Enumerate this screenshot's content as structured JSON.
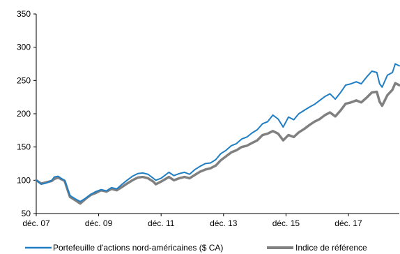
{
  "chart_data": {
    "type": "line",
    "title": "",
    "xlabel": "",
    "ylabel": "",
    "ylim": [
      50,
      350
    ],
    "yticks": [
      50,
      100,
      150,
      200,
      250,
      300,
      350
    ],
    "xlim": [
      2007.92,
      2019.55
    ],
    "xticks": [
      {
        "x": 2007.92,
        "label": "déc. 07"
      },
      {
        "x": 2009.92,
        "label": "déc. 09"
      },
      {
        "x": 2011.92,
        "label": "déc. 11"
      },
      {
        "x": 2013.92,
        "label": "déc. 13"
      },
      {
        "x": 2015.92,
        "label": "déc. 15"
      },
      {
        "x": 2017.92,
        "label": "déc. 17"
      }
    ],
    "grid": false,
    "legend_position": "bottom",
    "series": [
      {
        "name": "Portefeuille d'actions nord-américaines ($ CA)",
        "color": "#1f7ec4",
        "points": [
          [
            2007.92,
            100
          ],
          [
            2008.08,
            94
          ],
          [
            2008.25,
            96
          ],
          [
            2008.42,
            100
          ],
          [
            2008.5,
            105
          ],
          [
            2008.62,
            106
          ],
          [
            2008.75,
            102
          ],
          [
            2008.83,
            100
          ],
          [
            2009.0,
            77
          ],
          [
            2009.17,
            72
          ],
          [
            2009.33,
            68
          ],
          [
            2009.5,
            73
          ],
          [
            2009.67,
            79
          ],
          [
            2009.83,
            83
          ],
          [
            2010.0,
            86
          ],
          [
            2010.17,
            84
          ],
          [
            2010.33,
            89
          ],
          [
            2010.5,
            87
          ],
          [
            2010.67,
            94
          ],
          [
            2010.83,
            100
          ],
          [
            2011.0,
            106
          ],
          [
            2011.17,
            110
          ],
          [
            2011.33,
            111
          ],
          [
            2011.5,
            109
          ],
          [
            2011.67,
            103
          ],
          [
            2011.75,
            100
          ],
          [
            2011.92,
            103
          ],
          [
            2012.17,
            112
          ],
          [
            2012.33,
            107
          ],
          [
            2012.5,
            110
          ],
          [
            2012.67,
            112
          ],
          [
            2012.83,
            109
          ],
          [
            2013.0,
            116
          ],
          [
            2013.17,
            121
          ],
          [
            2013.33,
            125
          ],
          [
            2013.5,
            126
          ],
          [
            2013.67,
            131
          ],
          [
            2013.83,
            140
          ],
          [
            2014.0,
            145
          ],
          [
            2014.17,
            152
          ],
          [
            2014.33,
            155
          ],
          [
            2014.5,
            162
          ],
          [
            2014.67,
            165
          ],
          [
            2014.83,
            171
          ],
          [
            2015.0,
            176
          ],
          [
            2015.17,
            185
          ],
          [
            2015.33,
            188
          ],
          [
            2015.5,
            198
          ],
          [
            2015.67,
            192
          ],
          [
            2015.83,
            180
          ],
          [
            2016.0,
            195
          ],
          [
            2016.17,
            191
          ],
          [
            2016.33,
            200
          ],
          [
            2016.5,
            205
          ],
          [
            2016.67,
            210
          ],
          [
            2016.83,
            214
          ],
          [
            2017.0,
            220
          ],
          [
            2017.17,
            226
          ],
          [
            2017.33,
            230
          ],
          [
            2017.5,
            222
          ],
          [
            2017.67,
            232
          ],
          [
            2017.83,
            243
          ],
          [
            2018.0,
            245
          ],
          [
            2018.17,
            248
          ],
          [
            2018.33,
            245
          ],
          [
            2018.5,
            255
          ],
          [
            2018.67,
            264
          ],
          [
            2018.83,
            262
          ],
          [
            2018.92,
            245
          ],
          [
            2019.0,
            240
          ],
          [
            2019.17,
            258
          ],
          [
            2019.33,
            262
          ],
          [
            2019.42,
            275
          ],
          [
            2019.55,
            272
          ]
        ]
      },
      {
        "name": "Indice de référence",
        "color": "#808080",
        "points": [
          [
            2007.92,
            100
          ],
          [
            2008.08,
            95
          ],
          [
            2008.25,
            97
          ],
          [
            2008.42,
            99
          ],
          [
            2008.5,
            102
          ],
          [
            2008.62,
            104
          ],
          [
            2008.75,
            101
          ],
          [
            2008.83,
            99
          ],
          [
            2009.0,
            75
          ],
          [
            2009.17,
            70
          ],
          [
            2009.33,
            65
          ],
          [
            2009.5,
            72
          ],
          [
            2009.67,
            78
          ],
          [
            2009.83,
            81
          ],
          [
            2010.0,
            85
          ],
          [
            2010.17,
            83
          ],
          [
            2010.33,
            87
          ],
          [
            2010.5,
            85
          ],
          [
            2010.67,
            90
          ],
          [
            2010.83,
            95
          ],
          [
            2011.0,
            100
          ],
          [
            2011.17,
            104
          ],
          [
            2011.33,
            105
          ],
          [
            2011.5,
            103
          ],
          [
            2011.67,
            98
          ],
          [
            2011.75,
            94
          ],
          [
            2011.92,
            98
          ],
          [
            2012.17,
            105
          ],
          [
            2012.33,
            100
          ],
          [
            2012.5,
            103
          ],
          [
            2012.67,
            105
          ],
          [
            2012.83,
            103
          ],
          [
            2013.0,
            108
          ],
          [
            2013.17,
            113
          ],
          [
            2013.33,
            116
          ],
          [
            2013.5,
            118
          ],
          [
            2013.67,
            122
          ],
          [
            2013.83,
            130
          ],
          [
            2014.0,
            136
          ],
          [
            2014.17,
            142
          ],
          [
            2014.33,
            145
          ],
          [
            2014.5,
            150
          ],
          [
            2014.67,
            152
          ],
          [
            2014.83,
            156
          ],
          [
            2015.0,
            160
          ],
          [
            2015.17,
            168
          ],
          [
            2015.33,
            170
          ],
          [
            2015.5,
            174
          ],
          [
            2015.67,
            170
          ],
          [
            2015.83,
            160
          ],
          [
            2016.0,
            168
          ],
          [
            2016.17,
            165
          ],
          [
            2016.33,
            172
          ],
          [
            2016.5,
            177
          ],
          [
            2016.67,
            183
          ],
          [
            2016.83,
            188
          ],
          [
            2017.0,
            192
          ],
          [
            2017.17,
            198
          ],
          [
            2017.33,
            202
          ],
          [
            2017.5,
            196
          ],
          [
            2017.67,
            205
          ],
          [
            2017.83,
            215
          ],
          [
            2018.0,
            217
          ],
          [
            2018.17,
            220
          ],
          [
            2018.33,
            217
          ],
          [
            2018.5,
            224
          ],
          [
            2018.67,
            232
          ],
          [
            2018.83,
            233
          ],
          [
            2018.92,
            218
          ],
          [
            2019.0,
            212
          ],
          [
            2019.17,
            228
          ],
          [
            2019.33,
            236
          ],
          [
            2019.42,
            246
          ],
          [
            2019.55,
            243
          ]
        ]
      }
    ]
  }
}
